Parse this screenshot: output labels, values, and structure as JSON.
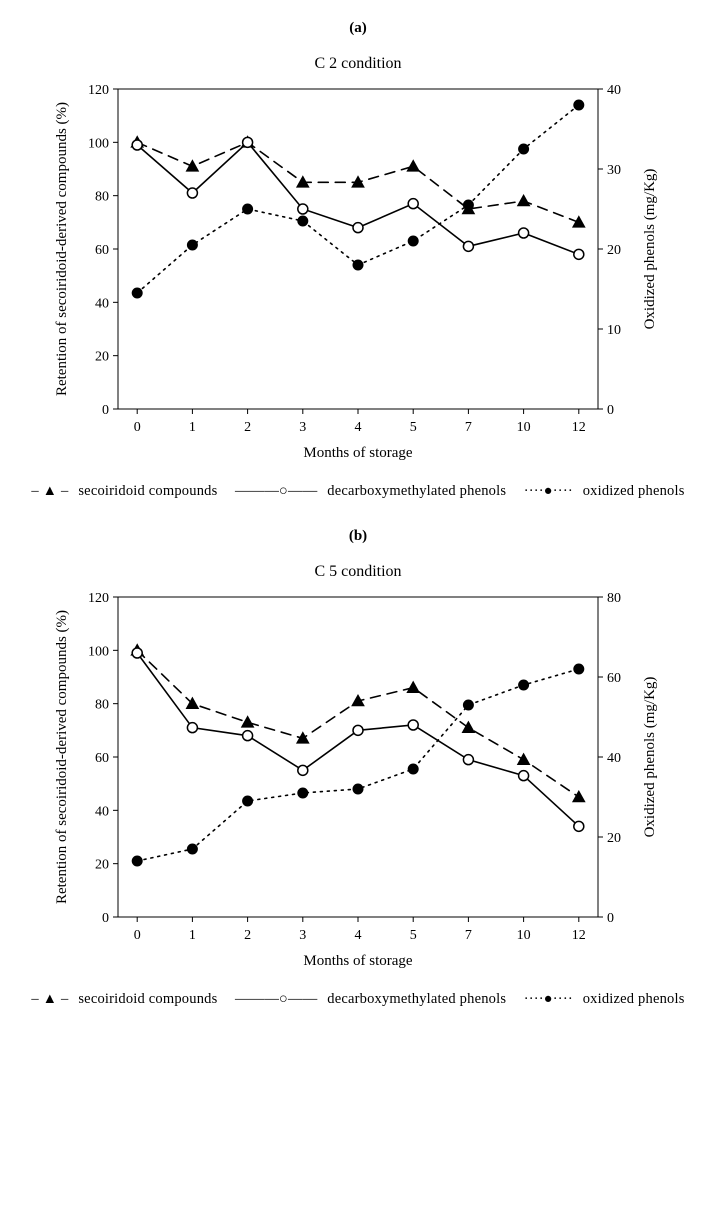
{
  "panel_a": {
    "label": "(a)"
  },
  "panel_b": {
    "label": "(b)"
  },
  "legend": {
    "series1": "secoiridoid compounds",
    "series2": "decarboxymethylated phenols",
    "series3": "oxidized phenols"
  },
  "chart1": {
    "title": "C 2 condition",
    "type": "line",
    "x_categories": [
      "0",
      "1",
      "2",
      "3",
      "4",
      "5",
      "7",
      "10",
      "12"
    ],
    "x_label": "Months of storage",
    "y1_label": "Retention of secoiridoid-derived  compounds  (%)",
    "y2_label": "Oxidized phenols (mg/Kg)",
    "y1_lim": [
      0,
      120
    ],
    "y1_tick_step": 20,
    "y2_lim": [
      0,
      40
    ],
    "y2_tick_step": 10,
    "series": {
      "secoiridoid": {
        "axis": "y1",
        "style": "dashed",
        "marker": "triangle-filled",
        "color": "#000000",
        "values": [
          100,
          91,
          100,
          85,
          85,
          91,
          75,
          78,
          70
        ]
      },
      "decarboxy": {
        "axis": "y1",
        "style": "solid",
        "marker": "circle-open",
        "color": "#000000",
        "values": [
          99,
          81,
          100,
          75,
          68,
          77,
          61,
          66,
          58
        ]
      },
      "oxidized": {
        "axis": "y2",
        "style": "dotted",
        "marker": "circle-filled",
        "color": "#000000",
        "values": [
          14.5,
          20.5,
          25,
          23.5,
          18,
          21,
          25.5,
          32.5,
          38
        ]
      }
    },
    "plot_bg": "#ffffff",
    "axis_color": "#000000",
    "font_sizes": {
      "title": 16,
      "axis_label": 15,
      "tick": 14
    },
    "line_width": 1.6,
    "marker_size": 6
  },
  "chart2": {
    "title": "C 5 condition",
    "type": "line",
    "x_categories": [
      "0",
      "1",
      "2",
      "3",
      "4",
      "5",
      "7",
      "10",
      "12"
    ],
    "x_label": "Months of storage",
    "y1_label": "Retention of secoiridoid-derived compounds (%)",
    "y2_label": "Oxidized phenols (mg/Kg)",
    "y1_lim": [
      0,
      120
    ],
    "y1_tick_step": 20,
    "y2_lim": [
      0,
      80
    ],
    "y2_tick_step": 20,
    "series": {
      "secoiridoid": {
        "axis": "y1",
        "style": "dashed",
        "marker": "triangle-filled",
        "color": "#000000",
        "values": [
          100,
          80,
          73,
          67,
          81,
          86,
          71,
          59,
          45
        ]
      },
      "decarboxy": {
        "axis": "y1",
        "style": "solid",
        "marker": "circle-open",
        "color": "#000000",
        "values": [
          99,
          71,
          68,
          55,
          70,
          72,
          59,
          53,
          34
        ]
      },
      "oxidized": {
        "axis": "y2",
        "style": "dotted",
        "marker": "circle-filled",
        "color": "#000000",
        "values": [
          14,
          17,
          29,
          31,
          32,
          37,
          53,
          58,
          62
        ]
      }
    },
    "plot_bg": "#ffffff",
    "axis_color": "#000000",
    "font_sizes": {
      "title": 16,
      "axis_label": 15,
      "tick": 14
    },
    "line_width": 1.6,
    "marker_size": 6
  }
}
